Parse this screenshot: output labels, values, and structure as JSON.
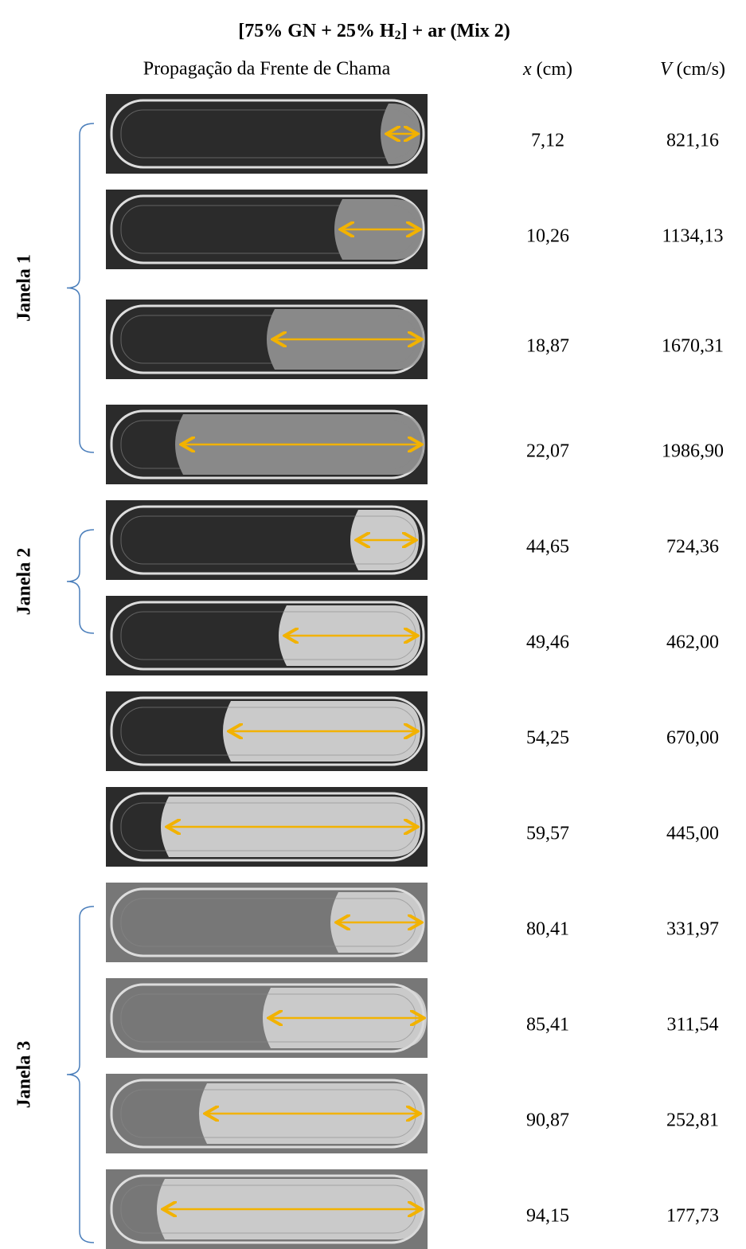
{
  "title_parts": [
    "[75% GN + 25% H",
    "2",
    "] + ar (Mix 2)"
  ],
  "header": {
    "images": "Propagação da Frente de Chama",
    "x_var": "x",
    "x_unit": "(cm)",
    "v_var": "V",
    "v_unit": "(cm/s)"
  },
  "windows": [
    {
      "label": "Janela 1",
      "rows": [
        {
          "x": "7,12",
          "v": "821,16"
        },
        {
          "x": "10,26",
          "v": "1134,13"
        },
        {
          "x": "18,87",
          "v": "1670,31"
        },
        {
          "x": "22,07",
          "v": "1986,90"
        }
      ]
    },
    {
      "label": "Janela 2",
      "rows": [
        {
          "x": "44,65",
          "v": "724,36"
        },
        {
          "x": "49,46",
          "v": "462,00"
        },
        {
          "x": "54,25",
          "v": "670,00"
        },
        {
          "x": "59,57",
          "v": "445,00"
        }
      ]
    },
    {
      "label": "Janela 3",
      "rows": [
        {
          "x": "80,41",
          "v": "331,97"
        },
        {
          "x": "85,41",
          "v": "311,54"
        },
        {
          "x": "90,87",
          "v": "252,81"
        },
        {
          "x": "94,15",
          "v": "177,73"
        }
      ]
    }
  ]
}
